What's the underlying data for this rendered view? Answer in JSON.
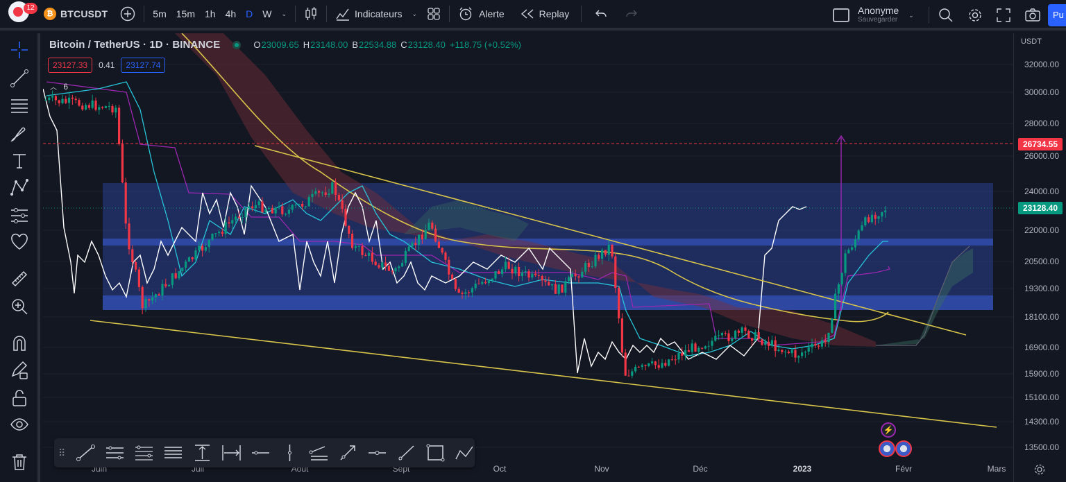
{
  "topbar": {
    "notification_count": "12",
    "symbol": "BTCUSDT",
    "timeframes": [
      "5m",
      "15m",
      "1h",
      "4h",
      "D",
      "W"
    ],
    "active_timeframe": "D",
    "indicators_label": "Indicateurs",
    "alert_label": "Alerte",
    "replay_label": "Replay",
    "user_name": "Anonyme",
    "user_status": "Sauvegarder",
    "publish_label": "Pu"
  },
  "legend": {
    "title": "Bitcoin / TetherUS · 1D · BINANCE",
    "open_label": "O",
    "open": "23009.65",
    "high_label": "H",
    "high": "23148.00",
    "low_label": "B",
    "low": "22534.88",
    "close_label": "C",
    "close": "23128.40",
    "change": "+118.75 (+0.52%)",
    "sell_price": "23127.33",
    "spread": "0.41",
    "buy_price": "23127.74",
    "collapsed_indicators": "6"
  },
  "price_scale": {
    "currency": "USDT",
    "labels": [
      "32000.00",
      "30000.00",
      "28000.00",
      "26000.00",
      "24000.00",
      "22000.00",
      "20500.00",
      "19300.00",
      "18100.00",
      "16900.00",
      "15900.00",
      "15100.00",
      "14300.00",
      "13500.00"
    ],
    "target_badge": "26734.55",
    "last_price_badge": "23128.40",
    "target_color": "#f23645",
    "last_price_color": "#089981"
  },
  "time_axis": {
    "labels": [
      "Juin",
      "Juil",
      "Août",
      "Sept",
      "Oct",
      "Nov",
      "Déc",
      "2023",
      "Févr",
      "Mars"
    ],
    "bold_label": "2023"
  },
  "chart_data": {
    "type": "candlestick",
    "symbol": "BTCUSDT",
    "interval": "1D",
    "exchange": "BINANCE",
    "last": {
      "open": 23009.65,
      "high": 23148.0,
      "low": 22534.88,
      "close": 23128.4,
      "change": 118.75,
      "change_pct": 0.52
    },
    "target_price": 26734.55,
    "range_zone": {
      "upper": 24100,
      "lower": 18400
    },
    "approx_close_path": [
      {
        "x": "2022-05-20",
        "y": 29500
      },
      {
        "x": "2022-06-10",
        "y": 29000
      },
      {
        "x": "2022-06-13",
        "y": 22000
      },
      {
        "x": "2022-06-18",
        "y": 18500
      },
      {
        "x": "2022-07-08",
        "y": 21500
      },
      {
        "x": "2022-07-20",
        "y": 23300
      },
      {
        "x": "2022-08-01",
        "y": 23000
      },
      {
        "x": "2022-08-14",
        "y": 24300
      },
      {
        "x": "2022-08-20",
        "y": 21200
      },
      {
        "x": "2022-09-01",
        "y": 20000
      },
      {
        "x": "2022-09-12",
        "y": 22400
      },
      {
        "x": "2022-09-20",
        "y": 18900
      },
      {
        "x": "2022-10-05",
        "y": 20300
      },
      {
        "x": "2022-10-20",
        "y": 19200
      },
      {
        "x": "2022-11-05",
        "y": 21300
      },
      {
        "x": "2022-11-09",
        "y": 15900
      },
      {
        "x": "2022-11-20",
        "y": 16300
      },
      {
        "x": "2022-12-01",
        "y": 17000
      },
      {
        "x": "2022-12-15",
        "y": 17500
      },
      {
        "x": "2022-12-30",
        "y": 16600
      },
      {
        "x": "2023-01-08",
        "y": 17100
      },
      {
        "x": "2023-01-14",
        "y": 20800
      },
      {
        "x": "2023-01-21",
        "y": 22700
      },
      {
        "x": "2023-01-26",
        "y": 23128.4
      }
    ]
  }
}
